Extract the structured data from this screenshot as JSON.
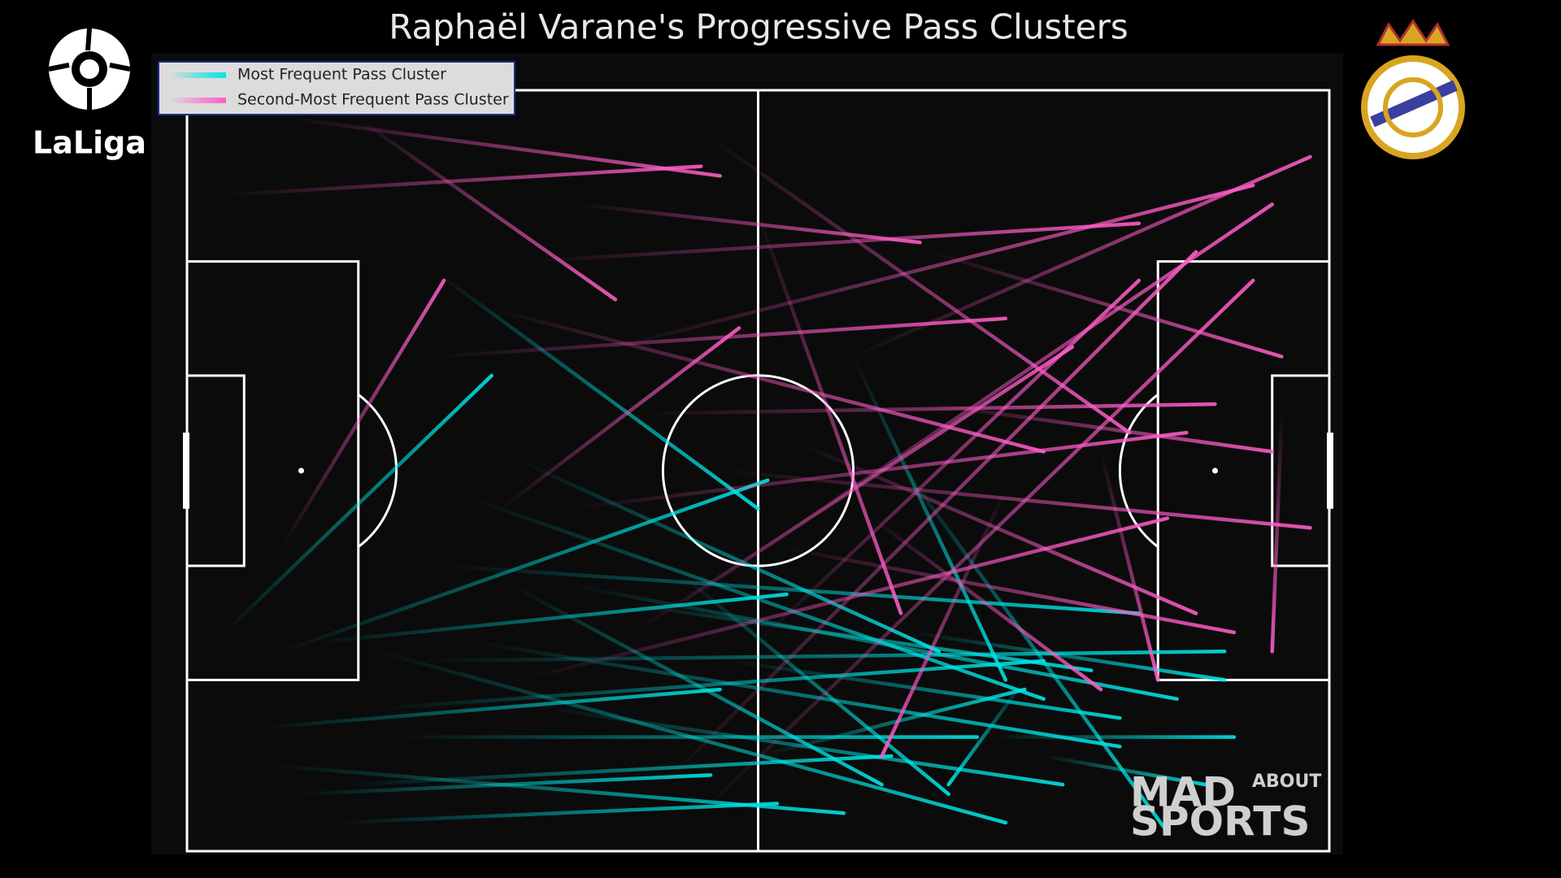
{
  "chart_data": {
    "type": "pass_map",
    "title": "Raphaël Varane's Progressive Pass Clusters",
    "logo_text": "LaLiga",
    "watermark": {
      "main": "MAD",
      "top": "ABOUT",
      "bottom": "SPORTS"
    },
    "xlim": [
      0,
      120
    ],
    "ylim": [
      0,
      80
    ],
    "series": [
      {
        "name": "Most Frequent Pass Cluster",
        "color": "#00e5e5",
        "x": [
          26,
          4,
          10,
          30,
          35,
          27,
          14,
          8,
          20,
          25,
          9,
          17,
          12,
          16,
          20,
          30,
          40,
          34,
          46,
          52,
          70,
          74,
          88,
          85,
          90,
          76,
          22,
          38,
          57,
          60
        ],
        "y": [
          19,
          57,
          59,
          43,
          39,
          50,
          58,
          67,
          65,
          60,
          71,
          73,
          74,
          77,
          59,
          58,
          52,
          52,
          54,
          51,
          28,
          38,
          62,
          68,
          70,
          57,
          68,
          65,
          60,
          70
        ],
        "end_x": [
          60,
          32,
          61,
          90,
          79,
          100,
          63,
          56,
          90,
          109,
          69,
          74,
          55,
          62,
          86,
          98,
          104,
          73,
          95,
          80,
          86,
          103,
          80,
          110,
          107,
          109,
          83,
          92,
          98,
          88
        ],
        "end_y": [
          44,
          30,
          41,
          64,
          59,
          55,
          53,
          63,
          60,
          59,
          76,
          70,
          72,
          75,
          77,
          69,
          64,
          73,
          61,
          74,
          62,
          78,
          73,
          68,
          73,
          62,
          68,
          73,
          66,
          63
        ]
      },
      {
        "name": "Second-Most Frequent Pass Cluster",
        "color": "#ff5cc8",
        "x": [
          4,
          11,
          18,
          36,
          41,
          55,
          60,
          78,
          70,
          45,
          26,
          32,
          48,
          56,
          40,
          52,
          60,
          47,
          35,
          50,
          54,
          64,
          62,
          72,
          78,
          96,
          115,
          33,
          10,
          86
        ],
        "y": [
          11,
          3,
          3,
          18,
          12,
          5,
          13,
          17,
          28,
          27,
          28,
          23,
          34,
          40,
          44,
          54,
          58,
          57,
          62,
          73,
          76,
          37,
          48,
          45,
          33,
          38,
          34,
          44,
          48,
          42
        ],
        "end_x": [
          54,
          56,
          45,
          100,
          77,
          99,
          75,
          115,
          118,
          112,
          86,
          90,
          108,
          118,
          105,
          114,
          100,
          93,
          103,
          106,
          112,
          106,
          110,
          96,
          114,
          102,
          114,
          58,
          27,
          73
        ],
        "end_y": [
          8,
          9,
          22,
          14,
          16,
          36,
          55,
          28,
          7,
          10,
          24,
          38,
          33,
          46,
          36,
          12,
          20,
          27,
          45,
          17,
          20,
          55,
          57,
          63,
          38,
          62,
          59,
          25,
          20,
          70
        ]
      }
    ]
  }
}
